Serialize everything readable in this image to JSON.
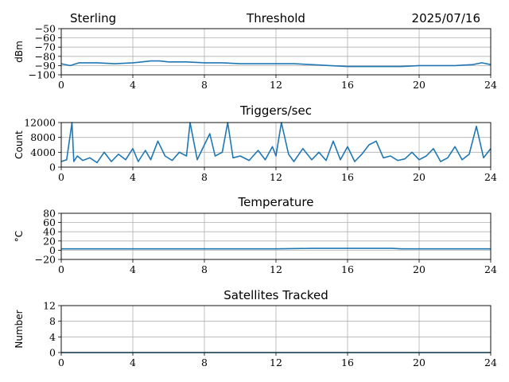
{
  "header": {
    "station": "Sterling",
    "date": "2025/07/16"
  },
  "series_color": "#1f77b4",
  "chart_data": [
    {
      "type": "line",
      "title": "Threshold",
      "xlabel": "",
      "ylabel": "dBm",
      "xlim": [
        0,
        24
      ],
      "ylim": [
        -100,
        -50
      ],
      "xticks": [
        0,
        4,
        8,
        12,
        16,
        20,
        24
      ],
      "xtick_labels": [
        "0",
        "4",
        "8",
        "12",
        "16",
        "20",
        "24"
      ],
      "yticks": [
        -100,
        -90,
        -80,
        -70,
        -60,
        -50
      ],
      "ytick_labels": [
        "−100",
        "−90",
        "−80",
        "−70",
        "−60",
        "−50"
      ],
      "grid": true,
      "x": [
        0,
        0.5,
        1,
        2,
        3,
        4,
        4.5,
        5,
        5.5,
        6,
        7,
        8,
        9,
        10,
        11,
        12,
        13,
        14,
        15,
        16,
        17,
        18,
        19,
        20,
        21,
        22,
        23,
        23.5,
        24
      ],
      "y": [
        -88,
        -90,
        -87,
        -87,
        -88,
        -87,
        -86,
        -85,
        -85,
        -86,
        -86,
        -87,
        -87,
        -88,
        -88,
        -88,
        -88,
        -89,
        -90,
        -91,
        -91,
        -91,
        -91,
        -90,
        -90,
        -90,
        -89,
        -87,
        -89
      ]
    },
    {
      "type": "line",
      "title": "Triggers/sec",
      "xlabel": "",
      "ylabel": "Count",
      "xlim": [
        0,
        24
      ],
      "ylim": [
        0,
        12000
      ],
      "xticks": [
        0,
        4,
        8,
        12,
        16,
        20,
        24
      ],
      "xtick_labels": [
        "0",
        "4",
        "8",
        "12",
        "16",
        "20",
        "24"
      ],
      "yticks": [
        0,
        4000,
        8000,
        12000
      ],
      "ytick_labels": [
        "0",
        "4000",
        "8000",
        "12000"
      ],
      "grid": true,
      "x": [
        0,
        0.3,
        0.6,
        0.7,
        0.9,
        1.2,
        1.6,
        2.0,
        2.4,
        2.8,
        3.2,
        3.6,
        4.0,
        4.3,
        4.7,
        5.0,
        5.4,
        5.8,
        6.2,
        6.6,
        7.0,
        7.2,
        7.6,
        8.0,
        8.3,
        8.6,
        9.0,
        9.3,
        9.6,
        10.0,
        10.5,
        11.0,
        11.4,
        11.8,
        12.0,
        12.3,
        12.7,
        13.0,
        13.5,
        14.0,
        14.4,
        14.8,
        15.2,
        15.6,
        16.0,
        16.4,
        16.8,
        17.2,
        17.6,
        18.0,
        18.4,
        18.8,
        19.2,
        19.6,
        20.0,
        20.4,
        20.8,
        21.2,
        21.6,
        22.0,
        22.4,
        22.8,
        23.2,
        23.6,
        24.0
      ],
      "y": [
        1500,
        2000,
        12000,
        1500,
        3000,
        1800,
        2500,
        1200,
        4000,
        1500,
        3500,
        2000,
        5000,
        1500,
        4500,
        2000,
        7000,
        3000,
        1800,
        4000,
        3000,
        12000,
        2000,
        6000,
        9000,
        3000,
        4000,
        12000,
        2500,
        3000,
        1800,
        4500,
        2000,
        5500,
        3000,
        12000,
        3500,
        1500,
        5000,
        2000,
        4000,
        1800,
        7000,
        2000,
        5500,
        1500,
        3500,
        6000,
        7000,
        2500,
        3000,
        1800,
        2200,
        4000,
        2000,
        3000,
        5000,
        1500,
        2500,
        5500,
        2000,
        3500,
        11000,
        2500,
        5000
      ]
    },
    {
      "type": "line",
      "title": "Temperature",
      "xlabel": "",
      "ylabel": "°C",
      "xlim": [
        0,
        24
      ],
      "ylim": [
        -20,
        80
      ],
      "xticks": [
        0,
        4,
        8,
        12,
        16,
        20,
        24
      ],
      "xtick_labels": [
        "0",
        "4",
        "8",
        "12",
        "16",
        "20",
        "24"
      ],
      "yticks": [
        -20,
        0,
        20,
        40,
        60,
        80
      ],
      "ytick_labels": [
        "−20",
        "0",
        "20",
        "40",
        "60",
        "80"
      ],
      "grid": true,
      "x": [
        0,
        4,
        8,
        12,
        14,
        15,
        16,
        17,
        18.5,
        19,
        20,
        24
      ],
      "y": [
        3,
        3,
        3,
        3,
        4,
        4,
        4,
        4,
        4,
        3,
        3,
        3
      ]
    },
    {
      "type": "line",
      "title": "Satellites Tracked",
      "xlabel": "",
      "ylabel": "Number",
      "xlim": [
        0,
        24
      ],
      "ylim": [
        0,
        12
      ],
      "xticks": [
        0,
        4,
        8,
        12,
        16,
        20,
        24
      ],
      "xtick_labels": [
        "0",
        "4",
        "8",
        "12",
        "16",
        "20",
        "24"
      ],
      "yticks": [
        0,
        4,
        8,
        12
      ],
      "ytick_labels": [
        "0",
        "4",
        "8",
        "12"
      ],
      "grid": true,
      "x": [
        0,
        24
      ],
      "y": [
        0,
        0
      ]
    }
  ]
}
